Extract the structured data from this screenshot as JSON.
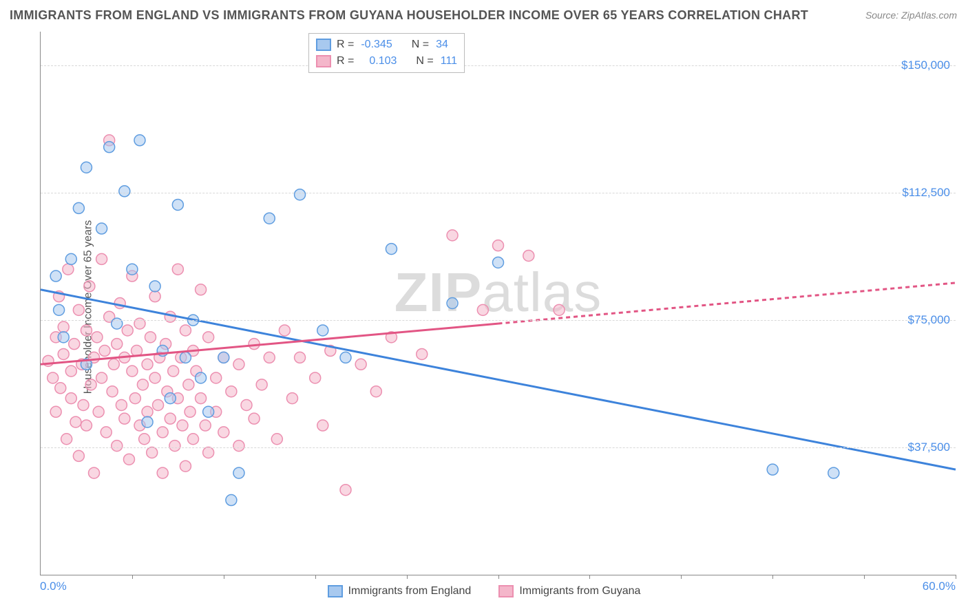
{
  "title": "IMMIGRANTS FROM ENGLAND VS IMMIGRANTS FROM GUYANA HOUSEHOLDER INCOME OVER 65 YEARS CORRELATION CHART",
  "source": "Source: ZipAtlas.com",
  "watermark_a": "ZIP",
  "watermark_b": "atlas",
  "chart": {
    "type": "scatter",
    "ylabel": "Householder Income Over 65 years",
    "xlim": [
      0.0,
      60.0
    ],
    "ylim": [
      0,
      160000
    ],
    "xlim_labels": [
      "0.0%",
      "60.0%"
    ],
    "yticks": [
      37500,
      75000,
      112500,
      150000
    ],
    "ytick_labels": [
      "$37,500",
      "$75,000",
      "$112,500",
      "$150,000"
    ],
    "xticks": [
      6,
      12,
      18,
      24,
      30,
      36,
      42,
      48,
      54,
      60
    ],
    "background_color": "#ffffff",
    "grid_color": "#d8d8d8",
    "series": {
      "england": {
        "label": "Immigrants from England",
        "r_label": "R =",
        "r_value": "-0.345",
        "n_label": "N =",
        "n_value": "34",
        "fill": "#a8c9ef",
        "stroke": "#5f9de0",
        "line_color": "#3d83db",
        "trend": {
          "y_at_xmin": 84000,
          "y_at_xmax": 31000
        },
        "points": [
          [
            1.0,
            88000
          ],
          [
            1.2,
            78000
          ],
          [
            1.5,
            70000
          ],
          [
            2.0,
            93000
          ],
          [
            2.5,
            108000
          ],
          [
            3.0,
            62000
          ],
          [
            3.0,
            120000
          ],
          [
            4.0,
            102000
          ],
          [
            4.5,
            126000
          ],
          [
            5.0,
            74000
          ],
          [
            5.5,
            113000
          ],
          [
            6.0,
            90000
          ],
          [
            6.5,
            128000
          ],
          [
            7.0,
            45000
          ],
          [
            7.5,
            85000
          ],
          [
            8.0,
            66000
          ],
          [
            8.5,
            52000
          ],
          [
            9.0,
            109000
          ],
          [
            9.5,
            64000
          ],
          [
            10.0,
            75000
          ],
          [
            10.5,
            58000
          ],
          [
            11.0,
            48000
          ],
          [
            12.0,
            64000
          ],
          [
            12.5,
            22000
          ],
          [
            13.0,
            30000
          ],
          [
            15.0,
            105000
          ],
          [
            17.0,
            112000
          ],
          [
            18.5,
            72000
          ],
          [
            20.0,
            64000
          ],
          [
            23.0,
            96000
          ],
          [
            27.0,
            80000
          ],
          [
            30.0,
            92000
          ],
          [
            48.0,
            31000
          ],
          [
            52.0,
            30000
          ]
        ]
      },
      "guyana": {
        "label": "Immigrants from Guyana",
        "r_label": "R =",
        "r_value": "0.103",
        "n_label": "N =",
        "n_value": "111",
        "fill": "#f4b6ca",
        "stroke": "#ec8fb0",
        "line_color": "#e25584",
        "trend": {
          "y_at_xmin": 62000,
          "y_at_xmax": 86000,
          "solid_to_x": 30.0
        },
        "points": [
          [
            0.5,
            63000
          ],
          [
            0.8,
            58000
          ],
          [
            1.0,
            70000
          ],
          [
            1.0,
            48000
          ],
          [
            1.2,
            82000
          ],
          [
            1.3,
            55000
          ],
          [
            1.5,
            65000
          ],
          [
            1.5,
            73000
          ],
          [
            1.7,
            40000
          ],
          [
            1.8,
            90000
          ],
          [
            2.0,
            60000
          ],
          [
            2.0,
            52000
          ],
          [
            2.2,
            68000
          ],
          [
            2.3,
            45000
          ],
          [
            2.5,
            78000
          ],
          [
            2.5,
            35000
          ],
          [
            2.7,
            62000
          ],
          [
            2.8,
            50000
          ],
          [
            3.0,
            72000
          ],
          [
            3.0,
            44000
          ],
          [
            3.2,
            85000
          ],
          [
            3.3,
            56000
          ],
          [
            3.5,
            64000
          ],
          [
            3.5,
            30000
          ],
          [
            3.7,
            70000
          ],
          [
            3.8,
            48000
          ],
          [
            4.0,
            93000
          ],
          [
            4.0,
            58000
          ],
          [
            4.2,
            66000
          ],
          [
            4.3,
            42000
          ],
          [
            4.5,
            76000
          ],
          [
            4.5,
            128000
          ],
          [
            4.7,
            54000
          ],
          [
            4.8,
            62000
          ],
          [
            5.0,
            68000
          ],
          [
            5.0,
            38000
          ],
          [
            5.2,
            80000
          ],
          [
            5.3,
            50000
          ],
          [
            5.5,
            64000
          ],
          [
            5.5,
            46000
          ],
          [
            5.7,
            72000
          ],
          [
            5.8,
            34000
          ],
          [
            6.0,
            60000
          ],
          [
            6.0,
            88000
          ],
          [
            6.2,
            52000
          ],
          [
            6.3,
            66000
          ],
          [
            6.5,
            44000
          ],
          [
            6.5,
            74000
          ],
          [
            6.7,
            56000
          ],
          [
            6.8,
            40000
          ],
          [
            7.0,
            62000
          ],
          [
            7.0,
            48000
          ],
          [
            7.2,
            70000
          ],
          [
            7.3,
            36000
          ],
          [
            7.5,
            58000
          ],
          [
            7.5,
            82000
          ],
          [
            7.7,
            50000
          ],
          [
            7.8,
            64000
          ],
          [
            8.0,
            42000
          ],
          [
            8.0,
            30000
          ],
          [
            8.2,
            68000
          ],
          [
            8.3,
            54000
          ],
          [
            8.5,
            46000
          ],
          [
            8.5,
            76000
          ],
          [
            8.7,
            60000
          ],
          [
            8.8,
            38000
          ],
          [
            9.0,
            90000
          ],
          [
            9.0,
            52000
          ],
          [
            9.2,
            64000
          ],
          [
            9.3,
            44000
          ],
          [
            9.5,
            72000
          ],
          [
            9.5,
            32000
          ],
          [
            9.7,
            56000
          ],
          [
            9.8,
            48000
          ],
          [
            10.0,
            66000
          ],
          [
            10.0,
            40000
          ],
          [
            10.2,
            60000
          ],
          [
            10.5,
            52000
          ],
          [
            10.5,
            84000
          ],
          [
            10.8,
            44000
          ],
          [
            11.0,
            70000
          ],
          [
            11.0,
            36000
          ],
          [
            11.5,
            58000
          ],
          [
            11.5,
            48000
          ],
          [
            12.0,
            64000
          ],
          [
            12.0,
            42000
          ],
          [
            12.5,
            54000
          ],
          [
            13.0,
            62000
          ],
          [
            13.0,
            38000
          ],
          [
            13.5,
            50000
          ],
          [
            14.0,
            68000
          ],
          [
            14.0,
            46000
          ],
          [
            14.5,
            56000
          ],
          [
            15.0,
            64000
          ],
          [
            15.5,
            40000
          ],
          [
            16.0,
            72000
          ],
          [
            16.5,
            52000
          ],
          [
            17.0,
            64000
          ],
          [
            18.0,
            58000
          ],
          [
            18.5,
            44000
          ],
          [
            19.0,
            66000
          ],
          [
            20.0,
            25000
          ],
          [
            21.0,
            62000
          ],
          [
            22.0,
            54000
          ],
          [
            23.0,
            70000
          ],
          [
            25.0,
            65000
          ],
          [
            27.0,
            100000
          ],
          [
            29.0,
            78000
          ],
          [
            30.0,
            97000
          ],
          [
            32.0,
            94000
          ],
          [
            34.0,
            78000
          ]
        ]
      }
    }
  }
}
